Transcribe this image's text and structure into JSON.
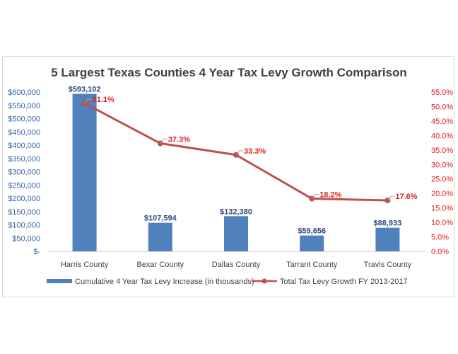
{
  "chart_data": {
    "type": "bar",
    "title": "5 Largest Texas Counties 4 Year Tax Levy Growth Comparison",
    "categories": [
      "Harris County",
      "Bexar County",
      "Dallas County",
      "Tarrant County",
      "Travis County"
    ],
    "series": [
      {
        "name": "Cumulative 4 Year Tax Levy Increase (in thousands)",
        "type": "bar",
        "axis": "left",
        "color": "#4f81bd",
        "values": [
          593102,
          107594,
          132380,
          59656,
          88933
        ],
        "labels": [
          "$593,102",
          "$107,594",
          "$132,380",
          "$59,656",
          "$88,933"
        ]
      },
      {
        "name": "Total Tax Levy Growth FY 2013-2017",
        "type": "line",
        "axis": "right",
        "color": "#c0504d",
        "values": [
          51.1,
          37.3,
          33.3,
          18.2,
          17.6
        ],
        "labels": [
          "51.1%",
          "37.3%",
          "33.3%",
          "18.2%",
          "17.6%"
        ]
      }
    ],
    "y_left": {
      "ylim": [
        0,
        600000
      ],
      "ticks": [
        "$-",
        "$50,000",
        "$100,000",
        "$150,000",
        "$200,000",
        "$250,000",
        "$300,000",
        "$350,000",
        "$400,000",
        "$450,000",
        "$500,000",
        "$550,000",
        "$600,000"
      ]
    },
    "y_right": {
      "ylim": [
        0,
        55
      ],
      "ticks": [
        "0.0%",
        "5.0%",
        "10.0%",
        "15.0%",
        "20.0%",
        "25.0%",
        "30.0%",
        "35.0%",
        "40.0%",
        "45.0%",
        "50.0%",
        "55.0%"
      ]
    },
    "grid": false,
    "legend_position": "bottom"
  }
}
